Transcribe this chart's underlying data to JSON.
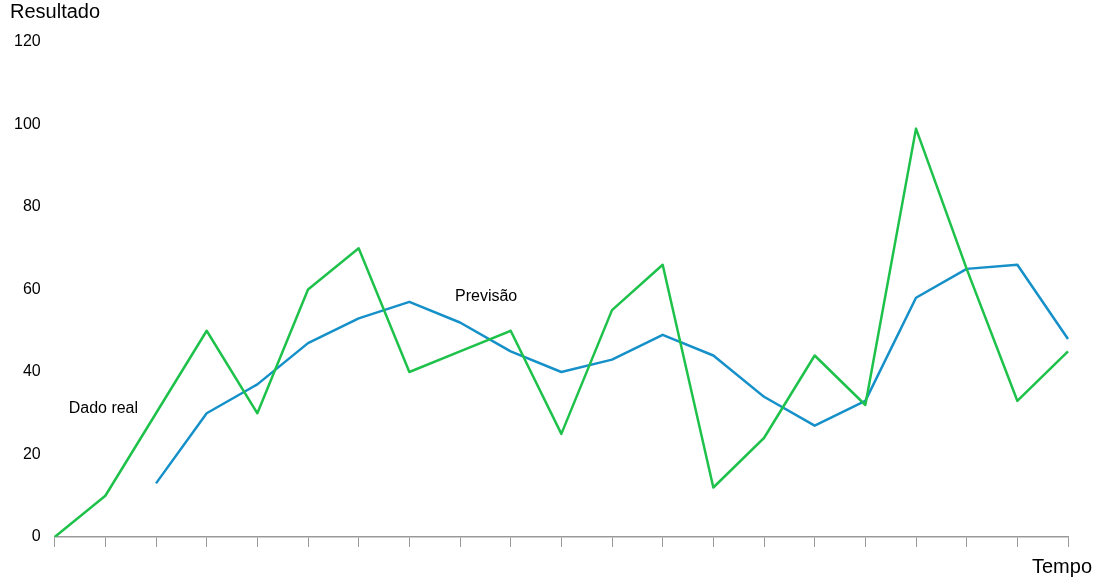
{
  "chart_data": {
    "type": "line",
    "xlabel": "Tempo",
    "ylabel": "Resultado",
    "categories": [
      null,
      null,
      null,
      null,
      null,
      null,
      null,
      null,
      null,
      null,
      null,
      null,
      null,
      null,
      null,
      null,
      null,
      null,
      null,
      null,
      null
    ],
    "series": [
      {
        "name": "Dado real",
        "color": "#1ec24b",
        "values": [
          0,
          10,
          30,
          50,
          30,
          60,
          70,
          40,
          45,
          50,
          25,
          55,
          66,
          12,
          24,
          44,
          32,
          99,
          65,
          33,
          45
        ]
      },
      {
        "name": "Previsão",
        "color": "#1590c8",
        "values": [
          null,
          null,
          13,
          30,
          37,
          47,
          53,
          57,
          52,
          45,
          40,
          43,
          49,
          44,
          34,
          27,
          33,
          58,
          65,
          66,
          48
        ]
      }
    ],
    "ylim": [
      0,
      120
    ],
    "yticks": [
      0,
      20,
      40,
      60,
      80,
      100,
      120
    ],
    "grid": false,
    "legend": false,
    "tick_labels": "y",
    "marker": "none",
    "line_style": "solid"
  }
}
